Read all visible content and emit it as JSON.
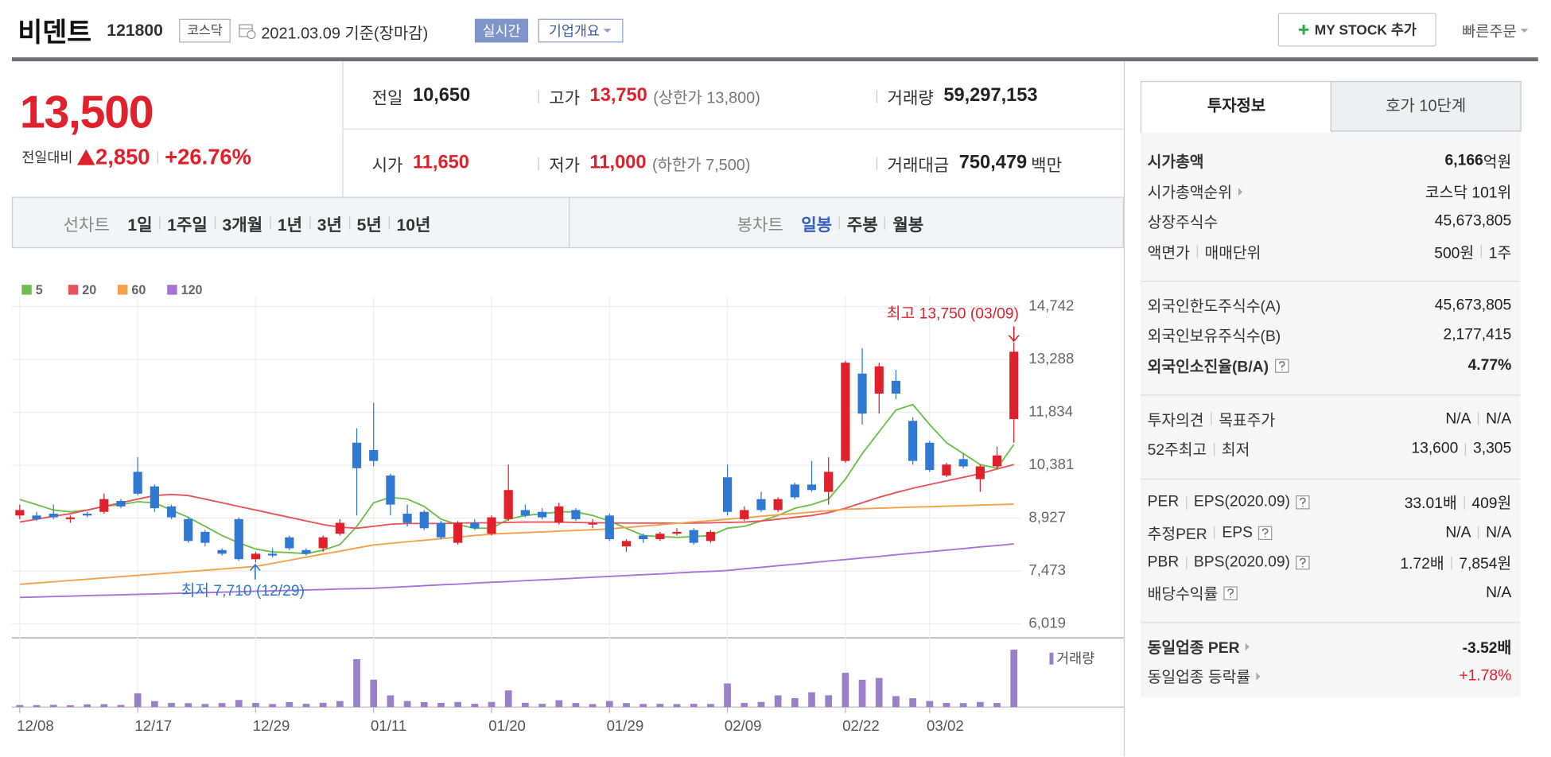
{
  "header": {
    "name": "비덴트",
    "code": "121800",
    "market": "코스닥",
    "date": "2021.03.09 기준(장마감)",
    "badge": "실시간",
    "menu": "기업개요",
    "button": "MY STOCK 추가",
    "order": "빠른주문"
  },
  "quote": {
    "price": "13,500",
    "change_label": "전일대비",
    "change": "2,850",
    "rate": "+26.76%",
    "color": "#e0212c",
    "items": [
      {
        "label": "전일",
        "value": "10,650"
      },
      {
        "label": "고가",
        "value": "13,750",
        "value_color": "#e0212c",
        "note": "(상한가 13,800)"
      },
      {
        "label": "거래량",
        "value": "59,297,153"
      },
      {
        "label": "시가",
        "value": "11,650",
        "value_color": "#e0212c"
      },
      {
        "label": "저가",
        "value": "11,000",
        "value_color": "#e0212c",
        "note": "(하한가 7,500)"
      },
      {
        "label": "거래대금",
        "value": "750,479",
        "unit": "백만"
      }
    ]
  },
  "tabs": {
    "line": {
      "label": "선차트",
      "items": [
        {
          "label": "1일"
        },
        {
          "label": "1주일"
        },
        {
          "label": "3개월"
        },
        {
          "label": "1년"
        },
        {
          "label": "3년"
        },
        {
          "label": "5년"
        },
        {
          "label": "10년"
        }
      ]
    },
    "candle": {
      "label": "봉차트",
      "items": [
        {
          "label": "일봉",
          "active": true
        },
        {
          "label": "주봉"
        },
        {
          "label": "월봉"
        }
      ]
    }
  },
  "investment": {
    "tabs": [
      {
        "label": "투자정보",
        "active": true
      },
      {
        "label": "호가 10단계"
      }
    ],
    "groups": [
      [
        {
          "label": [
            "시가총액"
          ],
          "value": [
            "6,166"
          ],
          "unit": "억원",
          "bold": true
        },
        {
          "label": [
            "시가총액순위"
          ],
          "link": true,
          "value": [
            "코스닥 101위"
          ]
        },
        {
          "label": [
            "상장주식수"
          ],
          "value": [
            "45,673,805"
          ]
        },
        {
          "label": [
            "액면가",
            "매매단위"
          ],
          "value": [
            "500원",
            "1주"
          ]
        }
      ],
      [
        {
          "label": [
            "외국인한도주식수(A)"
          ],
          "value": [
            "45,673,805"
          ]
        },
        {
          "label": [
            "외국인보유주식수(B)"
          ],
          "value": [
            "2,177,415"
          ]
        },
        {
          "label": [
            "외국인소진율(B/A)"
          ],
          "help": true,
          "value": [
            "4.77%"
          ],
          "bold": true
        }
      ],
      [
        {
          "label": [
            "투자의견",
            "목표주가"
          ],
          "value": [
            "N/A",
            "N/A"
          ]
        },
        {
          "label": [
            "52주최고",
            "최저"
          ],
          "value": [
            "13,600",
            "3,305"
          ]
        }
      ],
      [
        {
          "label": [
            "PER",
            "EPS(2020.09)"
          ],
          "help": true,
          "value": [
            "33.01배",
            "409원"
          ]
        },
        {
          "label": [
            "추정PER",
            "EPS"
          ],
          "help": true,
          "value": [
            "N/A",
            "N/A"
          ]
        },
        {
          "label": [
            "PBR",
            "BPS(2020.09)"
          ],
          "help": true,
          "value": [
            "1.72배",
            "7,854원"
          ]
        },
        {
          "label": [
            "배당수익률"
          ],
          "help": true,
          "value": [
            "N/A"
          ]
        }
      ],
      [
        {
          "label": [
            "동일업종 PER"
          ],
          "link": true,
          "value": [
            "-3.52배"
          ],
          "bold": true
        },
        {
          "label": [
            "동일업종 등락률"
          ],
          "link": true,
          "value": [
            "+1.78%"
          ],
          "value_color": "#e0212c"
        }
      ]
    ]
  },
  "chart_data": {
    "type": "candlestick",
    "categories": [
      "12/08",
      null,
      null,
      null,
      null,
      null,
      null,
      "12/17",
      null,
      null,
      null,
      null,
      null,
      null,
      "12/29",
      null,
      null,
      null,
      null,
      null,
      null,
      "01/11",
      null,
      null,
      null,
      null,
      null,
      null,
      "01/20",
      null,
      null,
      null,
      null,
      null,
      null,
      "01/29",
      null,
      null,
      null,
      null,
      null,
      null,
      "02/09",
      null,
      null,
      null,
      null,
      null,
      null,
      "02/22",
      null,
      null,
      null,
      null,
      "03/02",
      null,
      null,
      null,
      null,
      null
    ],
    "open": [
      9000,
      9000,
      9050,
      8900,
      9050,
      9100,
      9400,
      10200,
      9800,
      9250,
      8900,
      8550,
      8050,
      8900,
      7800,
      7950,
      8400,
      8050,
      8100,
      8500,
      11000,
      10800,
      10100,
      9050,
      9100,
      8800,
      8250,
      8800,
      8500,
      8900,
      9150,
      9100,
      8800,
      9150,
      8750,
      9000,
      8150,
      8450,
      8350,
      8500,
      8600,
      8300,
      10050,
      8900,
      9450,
      9150,
      9850,
      9850,
      9650,
      10500,
      12900,
      12350,
      12700,
      11600,
      11000,
      10100,
      10550,
      10000,
      10350,
      11650
    ],
    "close": [
      9150,
      8900,
      8950,
      8950,
      9000,
      9450,
      9250,
      9600,
      9200,
      8950,
      8300,
      8250,
      7950,
      7800,
      7950,
      7900,
      8100,
      7950,
      8400,
      8800,
      10300,
      10500,
      9300,
      8800,
      8650,
      8400,
      8800,
      8650,
      8950,
      9700,
      9000,
      8950,
      9250,
      8900,
      8800,
      8350,
      8300,
      8350,
      8500,
      8550,
      8250,
      8550,
      9100,
      9150,
      9150,
      9450,
      9500,
      9700,
      10200,
      13200,
      11800,
      13100,
      12350,
      10500,
      10250,
      10400,
      10350,
      10350,
      10650,
      13500
    ],
    "high": [
      9300,
      9100,
      9300,
      9000,
      9100,
      9600,
      9450,
      10600,
      9850,
      9300,
      8950,
      8600,
      8100,
      8950,
      8000,
      8100,
      8450,
      8100,
      8450,
      8900,
      11400,
      12100,
      10150,
      9300,
      9150,
      8850,
      8850,
      8900,
      9000,
      10400,
      9300,
      9200,
      9350,
      9200,
      8900,
      9050,
      8350,
      8500,
      8550,
      8650,
      8650,
      8600,
      10400,
      9250,
      9650,
      9500,
      9900,
      10500,
      10600,
      13250,
      13600,
      13200,
      13000,
      11700,
      11050,
      10450,
      10700,
      10400,
      10900,
      13750
    ],
    "low": [
      8900,
      8850,
      8900,
      8800,
      8950,
      9050,
      9200,
      9550,
      9100,
      8900,
      8250,
      8150,
      7900,
      7750,
      7710,
      7850,
      8050,
      7900,
      8000,
      8450,
      9000,
      10350,
      9000,
      8700,
      8600,
      8350,
      8200,
      8600,
      8450,
      8850,
      8950,
      8900,
      8750,
      8850,
      8650,
      8300,
      8000,
      8250,
      8300,
      8450,
      8200,
      8250,
      9000,
      8850,
      9100,
      9100,
      9450,
      9650,
      9300,
      10450,
      11500,
      11800,
      12200,
      10400,
      10200,
      10050,
      10300,
      9650,
      10300,
      11000
    ],
    "up_color": "#e0212c",
    "down_color": "#2f78d4",
    "series": [
      {
        "name": "5",
        "color": "#6cc04a",
        "values": [
          9440,
          9300,
          9150,
          9100,
          9150,
          9250,
          9300,
          9380,
          9350,
          9150,
          8950,
          8700,
          8450,
          8250,
          8080,
          8000,
          7980,
          7950,
          8050,
          8200,
          8700,
          9350,
          9500,
          9450,
          9250,
          8900,
          8750,
          8650,
          8650,
          8900,
          9000,
          9050,
          9100,
          9100,
          9000,
          8850,
          8650,
          8450,
          8420,
          8400,
          8420,
          8450,
          8650,
          8700,
          8850,
          9000,
          9200,
          9300,
          9450,
          10000,
          10700,
          11300,
          11900,
          12050,
          11500,
          11000,
          10700,
          10400,
          10300,
          10950
        ]
      },
      {
        "name": "20",
        "color": "#e8535a",
        "values": [
          8820,
          8900,
          8980,
          9050,
          9150,
          9250,
          9350,
          9450,
          9550,
          9580,
          9550,
          9450,
          9350,
          9250,
          9150,
          9050,
          8950,
          8850,
          8750,
          8680,
          8650,
          8700,
          8760,
          8780,
          8780,
          8780,
          8790,
          8800,
          8800,
          8810,
          8820,
          8820,
          8820,
          8810,
          8800,
          8800,
          8790,
          8790,
          8790,
          8790,
          8790,
          8800,
          8810,
          8820,
          8850,
          8900,
          8950,
          9000,
          9080,
          9200,
          9350,
          9500,
          9630,
          9750,
          9850,
          9950,
          10050,
          10150,
          10280,
          10400
        ]
      },
      {
        "name": "60",
        "color": "#f5a04a",
        "values": [
          7110,
          7145,
          7180,
          7215,
          7250,
          7285,
          7320,
          7355,
          7390,
          7425,
          7460,
          7495,
          7530,
          7565,
          7600,
          7685,
          7770,
          7855,
          7940,
          8020,
          8105,
          8190,
          8235,
          8280,
          8320,
          8365,
          8405,
          8450,
          8490,
          8510,
          8530,
          8550,
          8570,
          8590,
          8610,
          8630,
          8670,
          8710,
          8745,
          8785,
          8825,
          8860,
          8900,
          8940,
          8980,
          9015,
          9055,
          9095,
          9130,
          9170,
          9185,
          9200,
          9215,
          9230,
          9240,
          9255,
          9270,
          9285,
          9300,
          9310
        ]
      },
      {
        "name": "120",
        "color": "#a872d8",
        "values": [
          6750,
          6760,
          6775,
          6785,
          6800,
          6810,
          6820,
          6835,
          6845,
          6860,
          6870,
          6880,
          6895,
          6905,
          6920,
          6930,
          6940,
          6955,
          6965,
          6980,
          6990,
          7000,
          7025,
          7045,
          7070,
          7095,
          7115,
          7140,
          7165,
          7185,
          7210,
          7235,
          7255,
          7280,
          7305,
          7325,
          7350,
          7375,
          7395,
          7420,
          7445,
          7465,
          7490,
          7535,
          7575,
          7620,
          7660,
          7705,
          7750,
          7790,
          7835,
          7875,
          7920,
          7965,
          8005,
          8050,
          8090,
          8135,
          8175,
          8220
        ]
      }
    ],
    "volume": {
      "name": "거래량",
      "color": "#9a80c9",
      "values": [
        2100000,
        2000000,
        2300000,
        1900000,
        2800000,
        3000000,
        2200000,
        14200000,
        6100000,
        4300000,
        4000000,
        3200000,
        4100000,
        7300000,
        4200000,
        3100000,
        5200000,
        3300000,
        4400000,
        6200000,
        49500000,
        28300000,
        12100000,
        6200000,
        5100000,
        4300000,
        5200000,
        3400000,
        5300000,
        17200000,
        4400000,
        3300000,
        7100000,
        4200000,
        3100000,
        6300000,
        4100000,
        3200000,
        3300000,
        3100000,
        3300000,
        3200000,
        24400000,
        4200000,
        5300000,
        12100000,
        9200000,
        15300000,
        12200000,
        35400000,
        28200000,
        30100000,
        11300000,
        9100000,
        6200000,
        4300000,
        4100000,
        5200000,
        4200000,
        59297153
      ]
    },
    "ylim": [
      6019,
      14742
    ],
    "yticks": [
      {
        "value": 6019,
        "label": "6,019"
      },
      {
        "value": 7473,
        "label": "7,473"
      },
      {
        "value": 8927,
        "label": "8,927"
      },
      {
        "value": 10381,
        "label": "10,381"
      },
      {
        "value": 11834,
        "label": "11,834"
      },
      {
        "value": 13288,
        "label": "13,288"
      },
      {
        "value": 14742,
        "label": "14,742"
      }
    ],
    "grid": true,
    "annotations": [
      {
        "text": "최고 13,750 (03/09)",
        "color": "#e0212c"
      },
      {
        "text": "최저 7,710 (12/29)",
        "color": "#2f78d4"
      }
    ]
  }
}
